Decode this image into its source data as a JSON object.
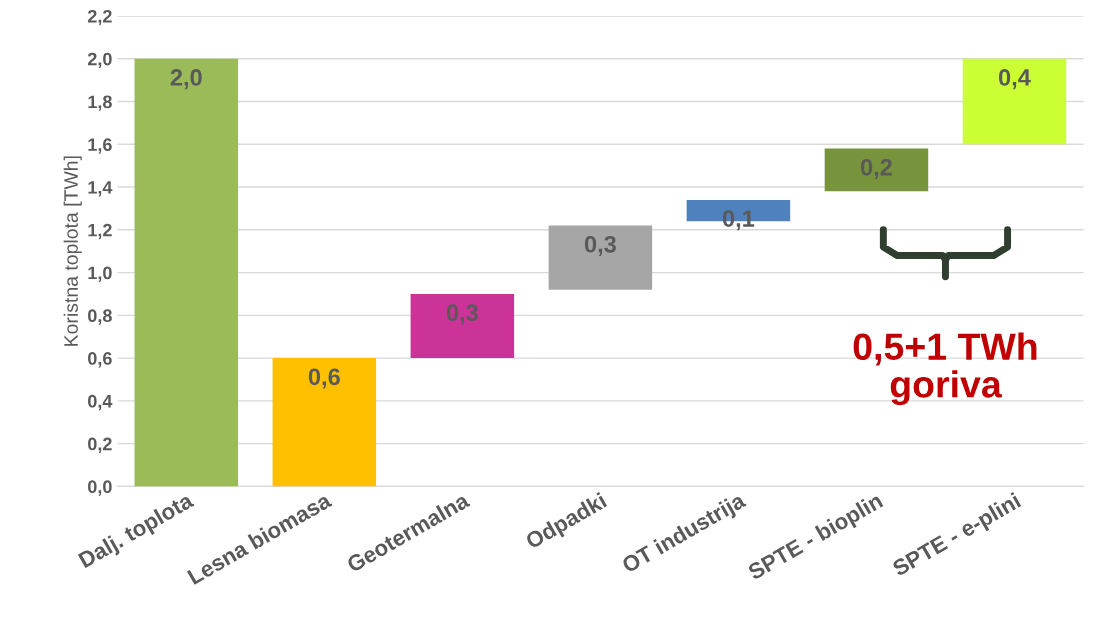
{
  "chart_data": {
    "type": "bar",
    "ylabel": "Koristna toplota [TWh]",
    "categories": [
      "Dalj. toplota",
      "Lesna biomasa",
      "Geotermalna",
      "Odpadki",
      "OT industrija",
      "SPTE - bioplin",
      "SPTE - e-plini"
    ],
    "values": [
      2.0,
      0.6,
      0.3,
      0.3,
      0.1,
      0.2,
      0.4
    ],
    "base": [
      0,
      0,
      0.6,
      0.92,
      1.24,
      1.38,
      1.6
    ],
    "colors": [
      "#9bbb59",
      "#ffc000",
      "#cc3399",
      "#a6a6a6",
      "#4f81bd",
      "#77933c",
      "#ccff33"
    ],
    "value_labels": [
      "2,0",
      "0,6",
      "0,3",
      "0,3",
      "0,1",
      "0,2",
      "0,4"
    ],
    "ylim": [
      0,
      2.2
    ],
    "yticks": [
      {
        "value": 0,
        "label": "0,0"
      },
      {
        "value": 0.2,
        "label": "0,2"
      },
      {
        "value": 0.4,
        "label": "0,4"
      },
      {
        "value": 0.6,
        "label": "0,6"
      },
      {
        "value": 0.8,
        "label": "0,8"
      },
      {
        "value": 1.0,
        "label": "1,0"
      },
      {
        "value": 1.2,
        "label": "1,2"
      },
      {
        "value": 1.4,
        "label": "1,4"
      },
      {
        "value": 1.6,
        "label": "1,6"
      },
      {
        "value": 1.8,
        "label": "1,8"
      },
      {
        "value": 2.0,
        "label": "2,0"
      },
      {
        "value": 2.2,
        "label": "2,2"
      }
    ],
    "grid": "y",
    "annotations": [
      "0,5+1 TWh\ngoriva"
    ]
  }
}
